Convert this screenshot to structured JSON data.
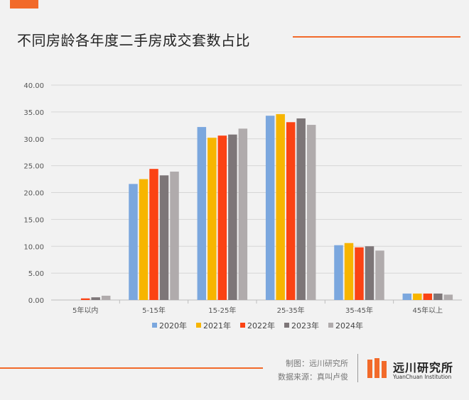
{
  "title": "不同房龄各年度二手房成交套数占比",
  "credits": {
    "maker": "制图：远川研究所",
    "source": "数据来源：真叫卢俊"
  },
  "logo": {
    "name_cn": "远川研究所",
    "name_en": "YuanChuan Institution"
  },
  "colors": {
    "accent": "#f26a2a",
    "series": [
      "#7ba7de",
      "#f7b500",
      "#fb4314",
      "#7d7678",
      "#b0abac"
    ]
  },
  "chart_data": {
    "type": "bar",
    "categories": [
      "5年以内",
      "5-15年",
      "15-25年",
      "25-35年",
      "35-45年",
      "45年以上"
    ],
    "series": [
      {
        "name": "2020年",
        "values": [
          0.0,
          21.6,
          32.2,
          34.3,
          10.2,
          1.2
        ]
      },
      {
        "name": "2021年",
        "values": [
          0.0,
          22.5,
          30.2,
          34.6,
          10.6,
          1.2
        ]
      },
      {
        "name": "2022年",
        "values": [
          0.3,
          24.4,
          30.6,
          33.1,
          9.8,
          1.2
        ]
      },
      {
        "name": "2023年",
        "values": [
          0.5,
          23.2,
          30.8,
          33.8,
          10.0,
          1.2
        ]
      },
      {
        "name": "2024年",
        "values": [
          0.8,
          23.9,
          31.9,
          32.6,
          9.2,
          1.0
        ]
      }
    ],
    "ylim": [
      0,
      40
    ],
    "yticks": [
      "0.00",
      "5.00",
      "10.00",
      "15.00",
      "20.00",
      "25.00",
      "30.00",
      "35.00",
      "40.00"
    ],
    "grid": true,
    "legend_position": "bottom"
  }
}
